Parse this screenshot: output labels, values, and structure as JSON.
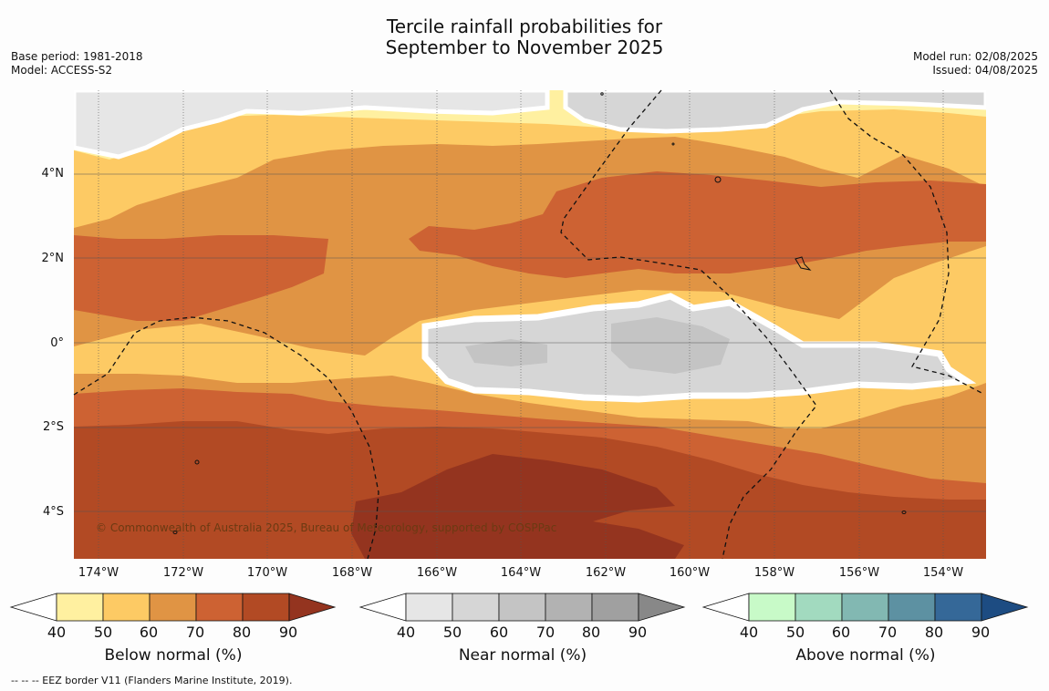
{
  "title_line1": "Tercile rainfall probabilities for",
  "title_line2": "September to November 2025",
  "meta": {
    "base_period": "Base period: 1981-2018",
    "model": "Model: ACCESS-S2",
    "model_run": "Model run: 02/08/2025",
    "issued": "Issued: 04/08/2025"
  },
  "map": {
    "lat_labels": [
      "4°N",
      "2°N",
      "0°",
      "2°S",
      "4°S"
    ],
    "lon_labels": [
      "174°W",
      "172°W",
      "170°W",
      "168°W",
      "166°W",
      "164°W",
      "162°W",
      "160°W",
      "158°W",
      "156°W",
      "154°W"
    ],
    "copyright": "© Commonwealth of Australia 2025, Bureau of Meteorology, supported by COSPPac"
  },
  "legends": [
    {
      "title": "Below normal (%)",
      "ticks": [
        "40",
        "50",
        "60",
        "70",
        "80",
        "90"
      ],
      "colors": [
        "#fff0a0",
        "#fdca64",
        "#e09444",
        "#cd6233",
        "#b24a24",
        "#94341f"
      ]
    },
    {
      "title": "Near normal (%)",
      "ticks": [
        "40",
        "50",
        "60",
        "70",
        "80",
        "90"
      ],
      "colors": [
        "#e6e6e6",
        "#d6d6d6",
        "#c4c4c4",
        "#b2b2b2",
        "#a0a0a0",
        "#888888"
      ]
    },
    {
      "title": "Above normal (%)",
      "ticks": [
        "40",
        "50",
        "60",
        "70",
        "80",
        "90"
      ],
      "colors": [
        "#c8fac8",
        "#a2dabf",
        "#82b8b2",
        "#5d91a2",
        "#356898",
        "#1d4c82"
      ]
    }
  ],
  "footer": "-- -- -- EEZ border V11 (Flanders Marine Institute, 2019)."
}
